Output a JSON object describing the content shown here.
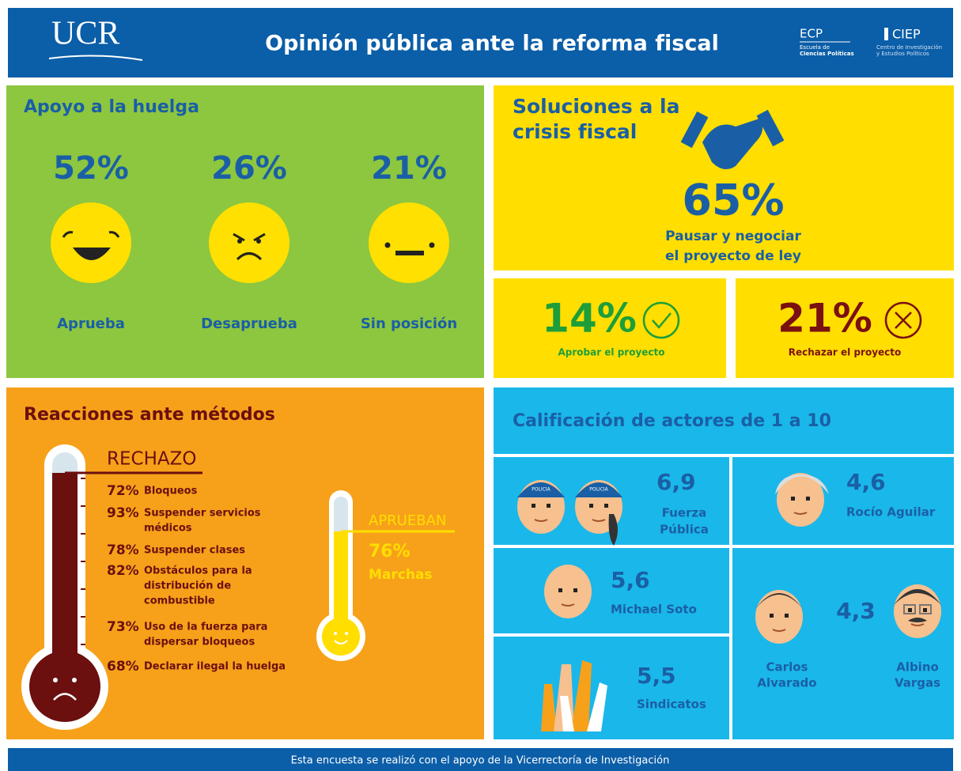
{
  "header": {
    "logo": "UCR",
    "title": "Opinión pública ante la reforma fiscal",
    "ecp": "ECP",
    "ecp_sub": [
      "Escuela de",
      "Ciencias Políticas"
    ],
    "ciep": "CIEP",
    "ciep_sub": [
      "Centro de Investigación",
      "y Estudios Políticos"
    ]
  },
  "strike": {
    "title": "Apoyo a la huelga",
    "items": [
      {
        "pct": "52%",
        "label": "Aprueba"
      },
      {
        "pct": "26%",
        "label": "Desaprueba"
      },
      {
        "pct": "21%",
        "label": "Sin posición"
      }
    ]
  },
  "solutions": {
    "title": [
      "Soluciones a la",
      "crisis fiscal"
    ],
    "main_pct": "65%",
    "main_label": [
      "Pausar y negociar",
      "el proyecto de ley"
    ],
    "approve_pct": "14%",
    "approve_label": "Aprobar el proyecto",
    "reject_pct": "21%",
    "reject_label": "Rechazar el proyecto"
  },
  "reactions": {
    "title": "Reacciones ante métodos",
    "reject_heading": "RECHAZO",
    "items": [
      {
        "pct": "72%",
        "lines": [
          "Bloqueos"
        ]
      },
      {
        "pct": "93%",
        "lines": [
          "Suspender servicios",
          "médicos"
        ]
      },
      {
        "pct": "78%",
        "lines": [
          "Suspender clases"
        ]
      },
      {
        "pct": "82%",
        "lines": [
          "Obstáculos para la",
          "distribución de",
          "combustible"
        ]
      },
      {
        "pct": "73%",
        "lines": [
          "Uso de la fuerza para",
          "dispersar bloqueos"
        ]
      },
      {
        "pct": "68%",
        "lines": [
          "Declarar ilegal la huelga"
        ]
      }
    ],
    "approve_heading": "APRUEBAN",
    "approve_pct": "76%",
    "approve_label": "Marchas"
  },
  "ratings": {
    "title": "Calificación de actores de 1 a 10",
    "police_cap": "POLICIA",
    "actors": [
      {
        "score": "6,9",
        "name": [
          "Fuerza",
          "Pública"
        ]
      },
      {
        "score": "4,6",
        "name": [
          "Rocío Aguilar"
        ]
      },
      {
        "score": "5,6",
        "name": [
          "Michael Soto"
        ]
      },
      {
        "score": "5,5",
        "name": [
          "Sindicatos"
        ]
      },
      {
        "score": "4,3",
        "name": [
          "Carlos",
          "Alvarado"
        ],
        "name2": [
          "Albino",
          "Vargas"
        ]
      }
    ]
  },
  "footer": "Esta encuesta se realizó con el apoyo de la  Vicerrectoría de Investigación"
}
